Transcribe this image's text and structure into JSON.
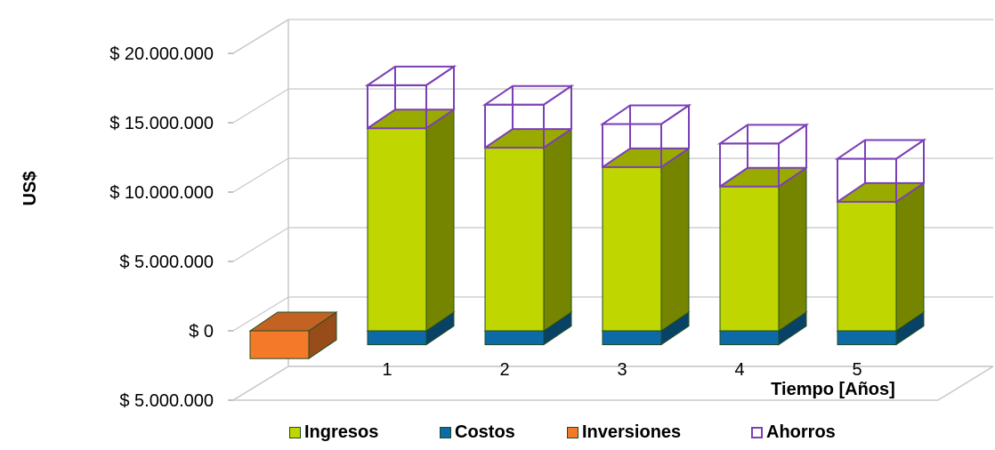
{
  "chart_data": {
    "type": "bar",
    "subtype": "3d-stacked-column",
    "ylabel": "US$",
    "xlabel": "Tiempo [Años]",
    "ylim": [
      -5000000,
      20000000
    ],
    "y_ticks": [
      {
        "value": 20000000,
        "label": "$ 20.000.000",
        "color": "#000000"
      },
      {
        "value": 15000000,
        "label": "$ 15.000.000",
        "color": "#000000"
      },
      {
        "value": 10000000,
        "label": "$ 10.000.000",
        "color": "#000000"
      },
      {
        "value": 5000000,
        "label": "$ 5.000.000",
        "color": "#000000"
      },
      {
        "value": 0,
        "label": "$ 0",
        "color": "#000000"
      },
      {
        "value": -5000000,
        "label": "$ 5.000.000",
        "color": "#ff0000"
      }
    ],
    "categories": [
      "",
      "1",
      "2",
      "3",
      "4",
      "5"
    ],
    "series": [
      {
        "name": "Ingresos",
        "color": "#bfd600",
        "values": [
          0,
          14600000,
          13200000,
          11800000,
          10400000,
          9300000
        ]
      },
      {
        "name": "Costos",
        "color": "#0e6aa6",
        "values": [
          0,
          -1000000,
          -1000000,
          -1000000,
          -1000000,
          -1000000
        ]
      },
      {
        "name": "Inversiones",
        "color": "#f47a2a",
        "values": [
          -2000000,
          0,
          0,
          0,
          0,
          0
        ]
      },
      {
        "name": "Ahorros",
        "color": "#7b3fb8",
        "values": [
          0,
          3100000,
          3100000,
          3100000,
          3100000,
          3100000
        ]
      }
    ],
    "grid": true,
    "legend_position": "bottom"
  }
}
